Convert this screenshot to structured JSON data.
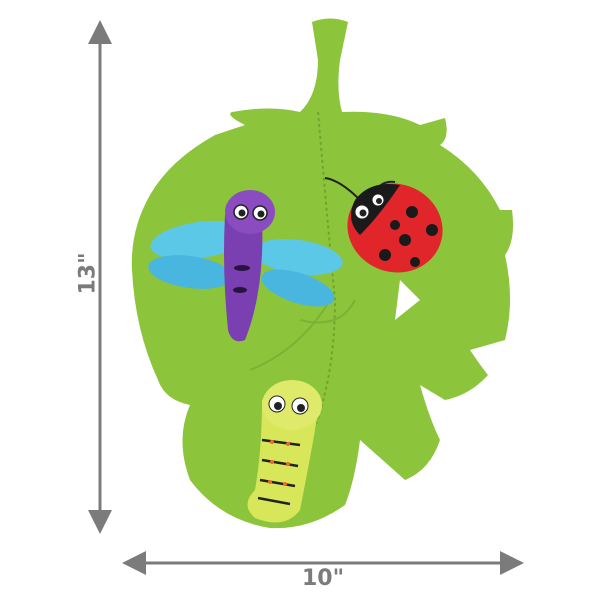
{
  "dimensions": {
    "height_label": "13\"",
    "width_label": "10\""
  },
  "colors": {
    "dimension_gray": "#7b7b7b",
    "leaf_green": "#8cc43c",
    "dragonfly_purple": "#7a3fb0",
    "wing_blue": "#5cc8e8",
    "ladybug_red": "#e0262a",
    "caterpillar_yellow": "#d8e65a"
  }
}
